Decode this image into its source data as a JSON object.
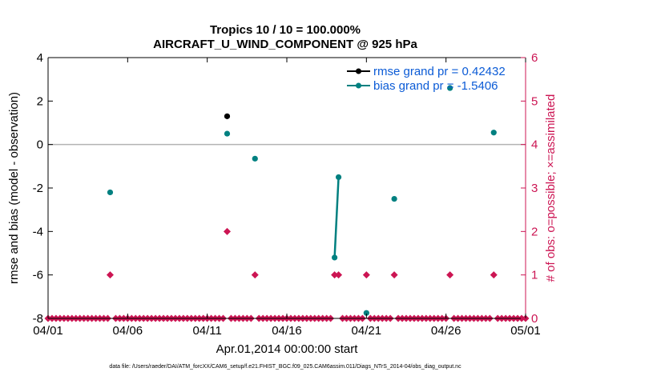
{
  "chart_data": {
    "type": "line",
    "title_line1": "Tropics 10 / 10 = 100.000%",
    "title_line2": "AIRCRAFT_U_WIND_COMPONENT @ 925 hPa",
    "xlabel": "Apr.01,2014 00:00:00 start",
    "ylabel_left": "rmse and bias (model - observation)",
    "ylabel_right": "# of obs: o=possible; ×=assimilated",
    "xlim": [
      0,
      30
    ],
    "ylim_left": [
      -8,
      4
    ],
    "ylim_right": [
      0,
      6
    ],
    "x_ticks": [
      {
        "x": 0,
        "label": "04/01"
      },
      {
        "x": 5,
        "label": "04/06"
      },
      {
        "x": 10,
        "label": "04/11"
      },
      {
        "x": 15,
        "label": "04/16"
      },
      {
        "x": 20,
        "label": "04/21"
      },
      {
        "x": 25,
        "label": "04/26"
      },
      {
        "x": 30,
        "label": "05/01"
      }
    ],
    "y_ticks_left": [
      {
        "v": 4,
        "label": "4"
      },
      {
        "v": 2,
        "label": "2"
      },
      {
        "v": 0,
        "label": "0"
      },
      {
        "v": -2,
        "label": "-2"
      },
      {
        "v": -4,
        "label": "-4"
      },
      {
        "v": -6,
        "label": "-6"
      },
      {
        "v": -8,
        "label": "-8"
      }
    ],
    "y_ticks_right": [
      {
        "v": 6,
        "label": "6"
      },
      {
        "v": 5,
        "label": "5"
      },
      {
        "v": 4,
        "label": "4"
      },
      {
        "v": 3,
        "label": "3"
      },
      {
        "v": 2,
        "label": "2"
      },
      {
        "v": 1,
        "label": "1"
      },
      {
        "v": 0,
        "label": "0"
      }
    ],
    "series": [
      {
        "name": "rmse",
        "legend": "rmse grand pr = 0.42432",
        "color": "#000000",
        "points": [
          [
            11.25,
            1.3
          ]
        ]
      },
      {
        "name": "bias",
        "legend": "bias grand pr = -1.5406",
        "color": "#008080",
        "points": [
          [
            3.9,
            -2.2
          ],
          [
            11.25,
            0.5
          ],
          [
            13.0,
            -0.65
          ],
          [
            18.0,
            -5.2
          ],
          [
            18.25,
            -1.5
          ],
          [
            20.0,
            -7.75
          ],
          [
            21.75,
            -2.5
          ],
          [
            25.25,
            2.6
          ],
          [
            28.0,
            0.55
          ]
        ],
        "line_segments": [
          [
            [
              18.0,
              -5.2
            ],
            [
              18.25,
              -1.5
            ]
          ]
        ]
      },
      {
        "name": "obs_count",
        "color": "#cc1553",
        "points": [
          [
            0,
            0
          ],
          [
            0.25,
            0
          ],
          [
            0.5,
            0
          ],
          [
            0.75,
            0
          ],
          [
            1,
            0
          ],
          [
            1.25,
            0
          ],
          [
            1.5,
            0
          ],
          [
            1.75,
            0
          ],
          [
            2,
            0
          ],
          [
            2.25,
            0
          ],
          [
            2.5,
            0
          ],
          [
            2.75,
            0
          ],
          [
            3,
            0
          ],
          [
            3.25,
            0
          ],
          [
            3.5,
            0
          ],
          [
            3.75,
            0
          ],
          [
            3.9,
            1
          ],
          [
            4.25,
            0
          ],
          [
            4.5,
            0
          ],
          [
            4.75,
            0
          ],
          [
            5,
            0
          ],
          [
            5.25,
            0
          ],
          [
            5.5,
            0
          ],
          [
            5.75,
            0
          ],
          [
            6,
            0
          ],
          [
            6.25,
            0
          ],
          [
            6.5,
            0
          ],
          [
            6.75,
            0
          ],
          [
            7,
            0
          ],
          [
            7.25,
            0
          ],
          [
            7.5,
            0
          ],
          [
            7.75,
            0
          ],
          [
            8,
            0
          ],
          [
            8.25,
            0
          ],
          [
            8.5,
            0
          ],
          [
            8.75,
            0
          ],
          [
            9,
            0
          ],
          [
            9.25,
            0
          ],
          [
            9.5,
            0
          ],
          [
            9.75,
            0
          ],
          [
            10,
            0
          ],
          [
            10.25,
            0
          ],
          [
            10.5,
            0
          ],
          [
            10.75,
            0
          ],
          [
            11,
            0
          ],
          [
            11.25,
            2
          ],
          [
            11.5,
            0
          ],
          [
            11.75,
            0
          ],
          [
            12,
            0
          ],
          [
            12.25,
            0
          ],
          [
            12.5,
            0
          ],
          [
            12.75,
            0
          ],
          [
            13.0,
            1
          ],
          [
            13.25,
            0
          ],
          [
            13.5,
            0
          ],
          [
            13.75,
            0
          ],
          [
            14,
            0
          ],
          [
            14.25,
            0
          ],
          [
            14.5,
            0
          ],
          [
            14.75,
            0
          ],
          [
            15,
            0
          ],
          [
            15.25,
            0
          ],
          [
            15.5,
            0
          ],
          [
            15.75,
            0
          ],
          [
            16,
            0
          ],
          [
            16.25,
            0
          ],
          [
            16.5,
            0
          ],
          [
            16.75,
            0
          ],
          [
            17,
            0
          ],
          [
            17.25,
            0
          ],
          [
            17.5,
            0
          ],
          [
            17.75,
            0
          ],
          [
            18.0,
            1
          ],
          [
            18.25,
            1
          ],
          [
            18.5,
            0
          ],
          [
            18.75,
            0
          ],
          [
            19,
            0
          ],
          [
            19.25,
            0
          ],
          [
            19.5,
            0
          ],
          [
            19.75,
            0
          ],
          [
            20.0,
            1
          ],
          [
            20.25,
            0
          ],
          [
            20.5,
            0
          ],
          [
            20.75,
            0
          ],
          [
            21,
            0
          ],
          [
            21.25,
            0
          ],
          [
            21.5,
            0
          ],
          [
            21.75,
            1
          ],
          [
            22,
            0
          ],
          [
            22.25,
            0
          ],
          [
            22.5,
            0
          ],
          [
            22.75,
            0
          ],
          [
            23,
            0
          ],
          [
            23.25,
            0
          ],
          [
            23.5,
            0
          ],
          [
            23.75,
            0
          ],
          [
            24,
            0
          ],
          [
            24.25,
            0
          ],
          [
            24.5,
            0
          ],
          [
            24.75,
            0
          ],
          [
            25,
            0
          ],
          [
            25.25,
            1
          ],
          [
            25.5,
            0
          ],
          [
            25.75,
            0
          ],
          [
            26,
            0
          ],
          [
            26.25,
            0
          ],
          [
            26.5,
            0
          ],
          [
            26.75,
            0
          ],
          [
            27,
            0
          ],
          [
            27.25,
            0
          ],
          [
            27.5,
            0
          ],
          [
            27.75,
            0
          ],
          [
            28.0,
            1
          ],
          [
            28.25,
            0
          ],
          [
            28.5,
            0
          ],
          [
            28.75,
            0
          ],
          [
            29,
            0
          ],
          [
            29.25,
            0
          ],
          [
            29.5,
            0
          ],
          [
            29.75,
            0
          ],
          [
            30,
            0
          ]
        ]
      }
    ],
    "legend_position": "top-right",
    "zero_line": true,
    "colors": {
      "left_axis": "#000000",
      "right_axis": "#cc1553",
      "zero_line": "#b3b3b3",
      "legend_text": "#0b5bd6"
    }
  },
  "footer": "data file: /Users/raeder/DAI/ATM_forcXX/CAM6_setup/f.e21.FHIST_BGC.f09_025.CAM6assim.011/Diags_NTrS_2014-04/obs_diag_output.nc"
}
